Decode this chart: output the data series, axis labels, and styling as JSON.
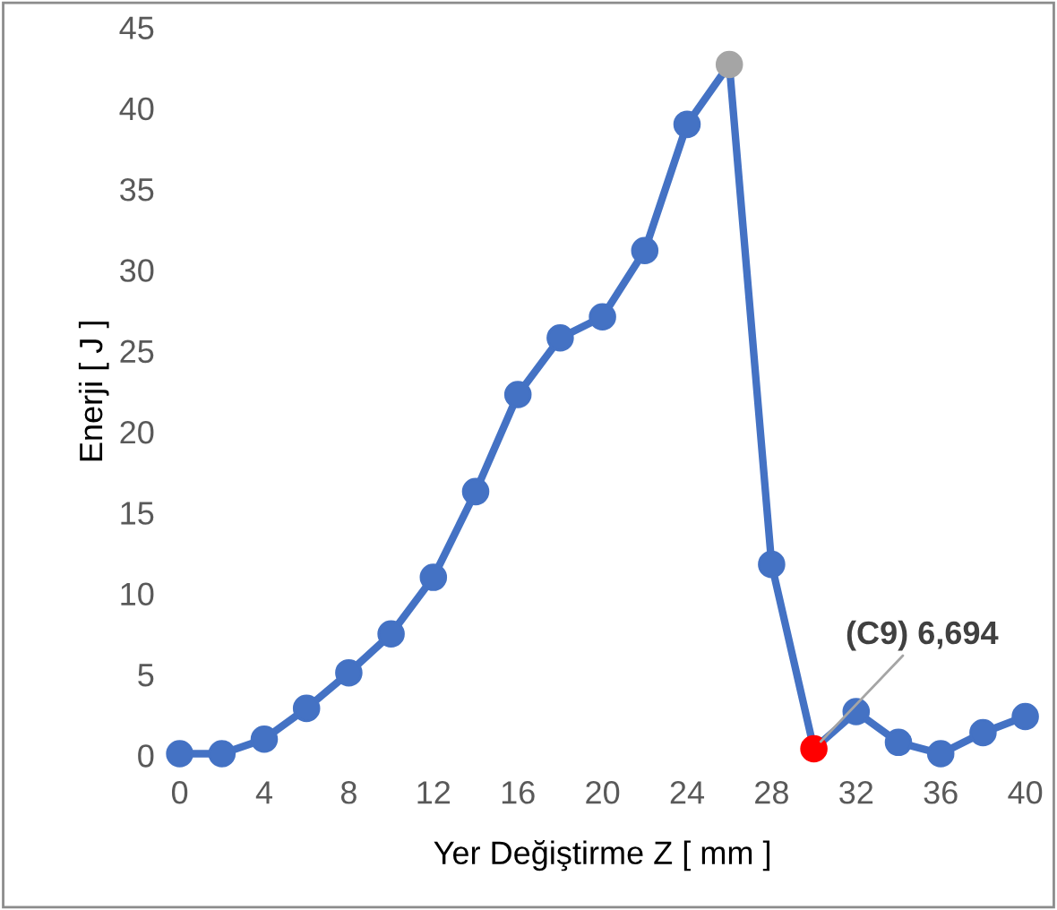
{
  "chart_data": {
    "type": "line",
    "xlabel": "Yer Değiştirme Z [ mm ]",
    "ylabel": "Enerji [ J ]",
    "x": [
      0,
      2,
      4,
      6,
      8,
      10,
      12,
      14,
      16,
      18,
      20,
      22,
      24,
      26,
      28,
      30,
      32,
      34,
      36,
      38,
      40
    ],
    "series": [
      {
        "color": "#4472c4",
        "values": [
          0.1,
          0.1,
          1.0,
          2.9,
          5.1,
          7.5,
          11.0,
          16.3,
          22.3,
          25.8,
          27.1,
          31.2,
          39.0,
          42.7,
          11.8,
          0.4,
          2.7,
          0.8,
          0.1,
          1.4,
          2.4
        ],
        "colors": [
          "#4472c4",
          "#4472c4",
          "#4472c4",
          "#4472c4",
          "#4472c4",
          "#4472c4",
          "#4472c4",
          "#4472c4",
          "#4472c4",
          "#4472c4",
          "#4472c4",
          "#4472c4",
          "#4472c4",
          "#a5a5a5",
          "#4472c4",
          "#ff0000",
          "#4472c4",
          "#4472c4",
          "#4472c4",
          "#4472c4",
          "#4472c4"
        ]
      }
    ],
    "xlim": [
      0,
      40
    ],
    "xticks": [
      0,
      4,
      8,
      12,
      16,
      20,
      24,
      28,
      32,
      36,
      40
    ],
    "ylim": [
      0,
      45
    ],
    "yticks": [
      0,
      5,
      10,
      15,
      20,
      25,
      30,
      35,
      40,
      45
    ],
    "marker": "circle",
    "line_style": "solid",
    "grid": false,
    "annotations": [
      {
        "text": "(C9) 6,694",
        "x": 30,
        "y": 0.4
      }
    ]
  }
}
